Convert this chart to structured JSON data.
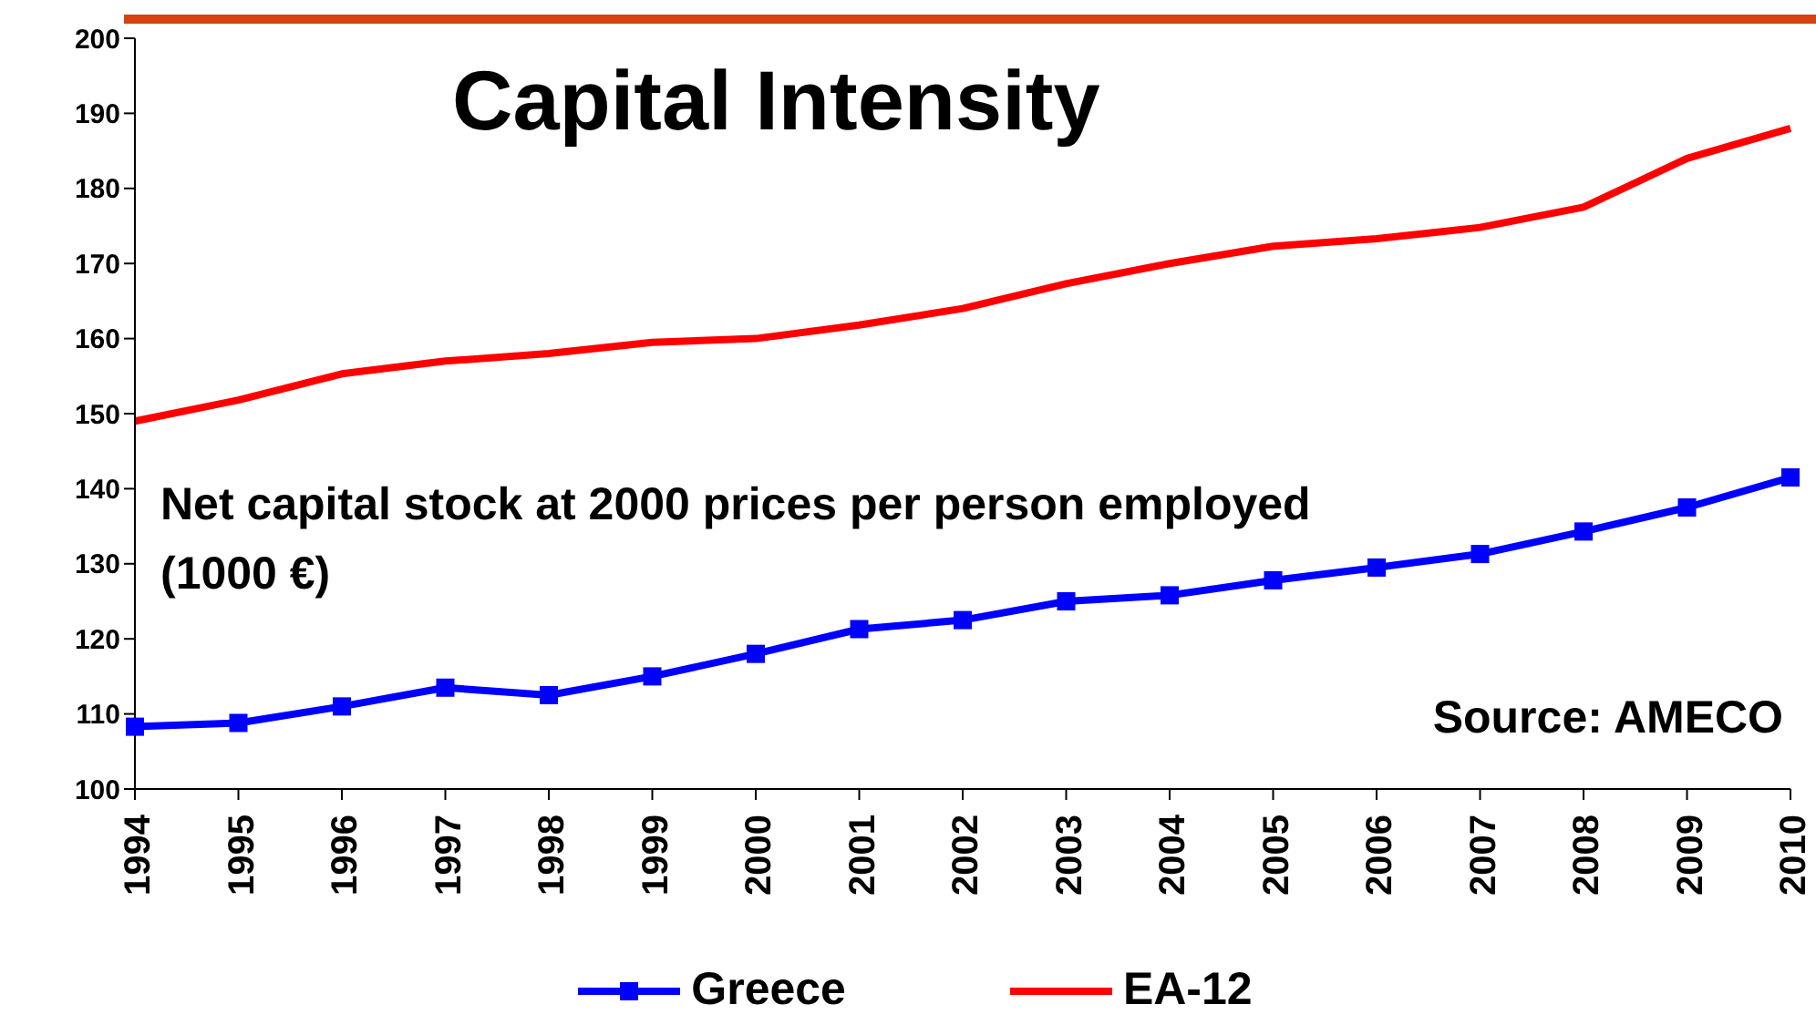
{
  "chart_data": {
    "type": "line",
    "title": "Capital Intensity",
    "annotations": [
      "Net capital stock at 2000 prices per person employed (1000 €)",
      "Source: AMECO"
    ],
    "categories": [
      "1994",
      "1995",
      "1996",
      "1997",
      "1998",
      "1999",
      "2000",
      "2001",
      "2002",
      "2003",
      "2004",
      "2005",
      "2006",
      "2007",
      "2008",
      "2009",
      "2010"
    ],
    "series": [
      {
        "name": "Greece",
        "color": "#0000ff",
        "marker": "square",
        "values": [
          108.3,
          108.8,
          111,
          113.5,
          112.5,
          115,
          118,
          121.3,
          122.5,
          125,
          125.8,
          127.8,
          129.5,
          131.3,
          134.3,
          137.5,
          141.5
        ]
      },
      {
        "name": "EA-12",
        "color": "#ff0000",
        "marker": "none",
        "values": [
          149,
          151.8,
          155.3,
          157,
          158,
          159.5,
          160,
          161.8,
          164,
          167.3,
          170,
          172.3,
          173.3,
          174.8,
          177.5,
          184,
          188
        ]
      }
    ],
    "ylim": [
      100,
      200
    ],
    "yticks": [
      100,
      110,
      120,
      130,
      140,
      150,
      160,
      170,
      180,
      190,
      200
    ],
    "grid": false,
    "legend": "bottom",
    "line_style": "solid"
  }
}
